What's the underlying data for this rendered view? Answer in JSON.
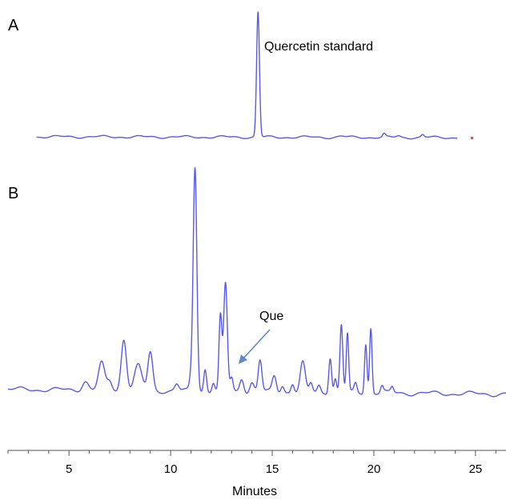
{
  "chart_data": [
    {
      "type": "line",
      "panel_label": "A",
      "title": "",
      "xlabel": "",
      "ylabel": "",
      "xlim": [
        2.0,
        26.5
      ],
      "ylim": [
        0,
        1.0
      ],
      "line_color": "#5a5ae6",
      "annotations": [
        {
          "text": "Quercetin standard"
        }
      ],
      "x_start": 3.4,
      "x_end": 24.1,
      "baseline": 0.02,
      "series": [
        {
          "peaks": [
            {
              "x": 14.3,
              "h": 1.0,
              "w": 0.07
            },
            {
              "x": 20.5,
              "h": 0.025,
              "w": 0.07
            },
            {
              "x": 21.2,
              "h": 0.012,
              "w": 0.1
            },
            {
              "x": 22.4,
              "h": 0.02,
              "w": 0.07
            },
            {
              "x": 18.4,
              "h": 0.008,
              "w": 0.15
            }
          ]
        }
      ]
    },
    {
      "type": "line",
      "panel_label": "B",
      "title": "",
      "xlabel": "Minutes",
      "ylabel": "",
      "xlim": [
        2.0,
        26.5
      ],
      "ylim": [
        0,
        1.0
      ],
      "xticks": [
        5,
        10,
        15,
        20,
        25
      ],
      "line_color": "#5a5ae6",
      "annotations": [
        {
          "text": "Que",
          "target_x": 14.3
        }
      ],
      "x_start": 2.0,
      "x_end": 26.5,
      "baseline": 0.03,
      "series": [
        {
          "peaks": [
            {
              "x": 5.8,
              "h": 0.04,
              "w": 0.15
            },
            {
              "x": 6.6,
              "h": 0.12,
              "w": 0.15
            },
            {
              "x": 7.0,
              "h": 0.04,
              "w": 0.12
            },
            {
              "x": 7.7,
              "h": 0.23,
              "w": 0.13
            },
            {
              "x": 8.4,
              "h": 0.11,
              "w": 0.18
            },
            {
              "x": 9.0,
              "h": 0.17,
              "w": 0.12
            },
            {
              "x": 10.3,
              "h": 0.03,
              "w": 0.1
            },
            {
              "x": 11.0,
              "h": 0.05,
              "w": 0.08
            },
            {
              "x": 11.2,
              "h": 1.0,
              "w": 0.09
            },
            {
              "x": 11.7,
              "h": 0.1,
              "w": 0.07
            },
            {
              "x": 12.1,
              "h": 0.04,
              "w": 0.07
            },
            {
              "x": 12.45,
              "h": 0.33,
              "w": 0.07
            },
            {
              "x": 12.7,
              "h": 0.48,
              "w": 0.09
            },
            {
              "x": 13.0,
              "h": 0.06,
              "w": 0.07
            },
            {
              "x": 13.5,
              "h": 0.06,
              "w": 0.1
            },
            {
              "x": 14.0,
              "h": 0.04,
              "w": 0.1
            },
            {
              "x": 14.4,
              "h": 0.14,
              "w": 0.09
            },
            {
              "x": 15.1,
              "h": 0.07,
              "w": 0.1
            },
            {
              "x": 15.5,
              "h": 0.03,
              "w": 0.08
            },
            {
              "x": 16.0,
              "h": 0.04,
              "w": 0.08
            },
            {
              "x": 16.5,
              "h": 0.13,
              "w": 0.12
            },
            {
              "x": 16.9,
              "h": 0.04,
              "w": 0.08
            },
            {
              "x": 17.3,
              "h": 0.03,
              "w": 0.08
            },
            {
              "x": 17.85,
              "h": 0.16,
              "w": 0.07
            },
            {
              "x": 18.1,
              "h": 0.06,
              "w": 0.06
            },
            {
              "x": 18.4,
              "h": 0.3,
              "w": 0.07
            },
            {
              "x": 18.7,
              "h": 0.26,
              "w": 0.06
            },
            {
              "x": 19.1,
              "h": 0.04,
              "w": 0.07
            },
            {
              "x": 19.6,
              "h": 0.22,
              "w": 0.06
            },
            {
              "x": 19.85,
              "h": 0.29,
              "w": 0.06
            },
            {
              "x": 20.4,
              "h": 0.03,
              "w": 0.07
            },
            {
              "x": 20.9,
              "h": 0.025,
              "w": 0.07
            }
          ]
        }
      ]
    }
  ]
}
